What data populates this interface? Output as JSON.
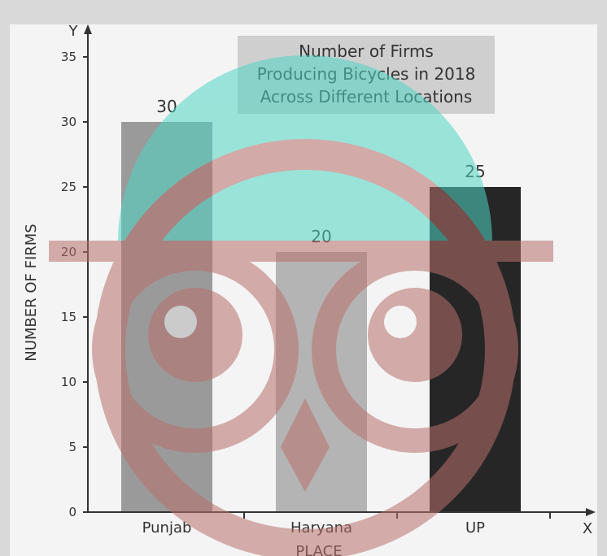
{
  "chart_data": {
    "type": "bar",
    "title_lines": [
      "Number of Firms",
      "Producing Bicycles in 2018",
      "Across Different Locations"
    ],
    "categories": [
      "Punjab",
      "Haryana",
      "UP"
    ],
    "values": [
      30,
      20,
      25
    ],
    "data_labels": [
      "30",
      "20",
      "25"
    ],
    "xlabel": "PLACE",
    "ylabel": "NUMBER OF FIRMS",
    "x_axis_letter": "X",
    "y_axis_letter": "Y",
    "ylim": [
      0,
      35
    ],
    "yticks": [
      "0",
      "5",
      "10",
      "15",
      "20",
      "25",
      "30",
      "35"
    ],
    "grid": false,
    "bar_colors": [
      "#9a9a9a",
      "#b4b4b4",
      "#262626"
    ]
  },
  "watermark": {
    "description": "owl logo",
    "colors": {
      "ring": "#b8716d",
      "fill": "#4fd6c4"
    }
  }
}
